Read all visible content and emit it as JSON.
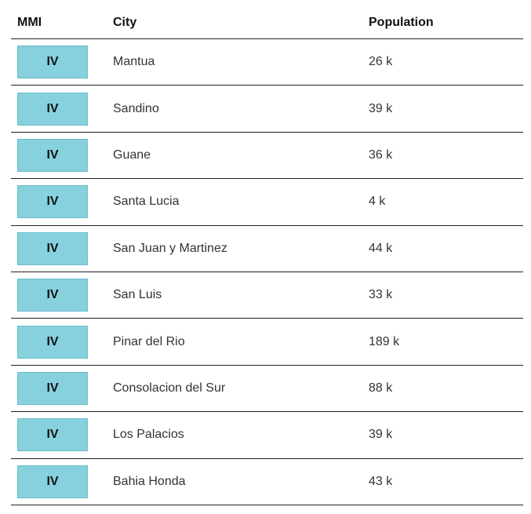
{
  "table": {
    "header": [
      "MMI",
      "City",
      "Population"
    ],
    "rows": [
      [
        "IV",
        "Mantua",
        "26 k"
      ],
      [
        "IV",
        "Sandino",
        "39 k"
      ],
      [
        "IV",
        "Guane",
        "36 k"
      ],
      [
        "IV",
        "Santa Lucia",
        "4 k"
      ],
      [
        "IV",
        "San Juan y Martinez",
        "44 k"
      ],
      [
        "IV",
        "San Luis",
        "33 k"
      ],
      [
        "IV",
        "Pinar del Rio",
        "189 k"
      ],
      [
        "IV",
        "Consolacion del Sur",
        "88 k"
      ],
      [
        "IV",
        "Los Palacios",
        "39 k"
      ],
      [
        "IV",
        "Bahia Honda",
        "43 k"
      ]
    ]
  }
}
